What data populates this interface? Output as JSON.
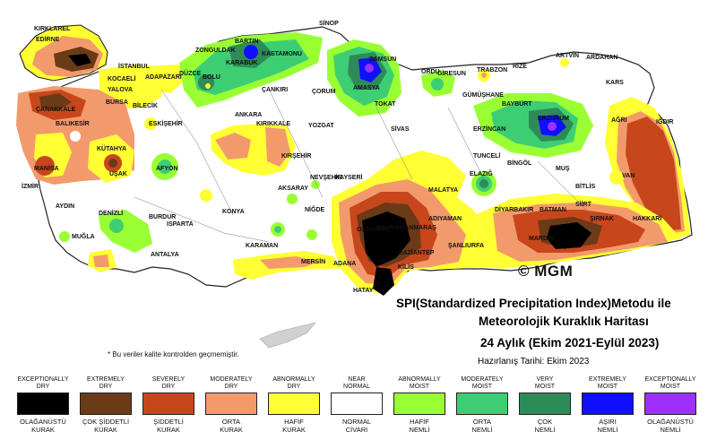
{
  "title": {
    "line1": "SPI(Standardized Precipitation Index)Metodu ile",
    "line2": "Meteorolojik Kuraklık Haritası",
    "line3": "24 Aylık (Ekim 2021-Eylül 2023)",
    "line4": "Hazırlanış Tarihi: Ekim 2023"
  },
  "brand": "© MGM",
  "note": "* Bu veriler kalite kontrolden geçmemiştir.",
  "colors": {
    "exceptionally_dry": "#000000",
    "extremely_dry": "#6b3a17",
    "severely_dry": "#c8461c",
    "moderately_dry": "#f39a6c",
    "abnormally_dry": "#ffff33",
    "near_normal": "#ffffff",
    "abnormally_moist": "#99ff33",
    "moderately_moist": "#3dce73",
    "very_moist": "#2e8b57",
    "extremely_moist": "#1010ff",
    "exceptionally_moist": "#9b30ff"
  },
  "legend": [
    {
      "en1": "EXCEPTIONALLY",
      "en2": "DRY",
      "tr1": "OLAĞANÜSTÜ",
      "tr2": "KURAK",
      "color": "#000000"
    },
    {
      "en1": "EXTREMELY",
      "en2": "DRY",
      "tr1": "ÇOK ŞİDDETLİ",
      "tr2": "KURAK",
      "color": "#6b3a17"
    },
    {
      "en1": "SEVERELY",
      "en2": "DRY",
      "tr1": "ŞİDDETLİ",
      "tr2": "KURAK",
      "color": "#c8461c"
    },
    {
      "en1": "MODERATELY",
      "en2": "DRY",
      "tr1": "ORTA",
      "tr2": "KURAK",
      "color": "#f39a6c"
    },
    {
      "en1": "ABNORMALLY",
      "en2": "DRY",
      "tr1": "HAFİF",
      "tr2": "KURAK",
      "color": "#ffff33"
    },
    {
      "en1": "NEAR",
      "en2": "NORMAL",
      "tr1": "NORMAL",
      "tr2": "CİVARI",
      "color": "#ffffff"
    },
    {
      "en1": "ABNORMALLY",
      "en2": "MOIST",
      "tr1": "HAFİF",
      "tr2": "NEMLİ",
      "color": "#99ff33"
    },
    {
      "en1": "MODERATELY",
      "en2": "MOIST",
      "tr1": "ORTA",
      "tr2": "NEMLİ",
      "color": "#3dce73"
    },
    {
      "en1": "VERY",
      "en2": "MOIST",
      "tr1": "ÇOK",
      "tr2": "NEMLİ",
      "color": "#2e8b57"
    },
    {
      "en1": "EXTREMELY",
      "en2": "MOIST",
      "tr1": "AŞIRI",
      "tr2": "NEMLİ",
      "color": "#1010ff"
    },
    {
      "en1": "EXCEPTIONALLY",
      "en2": "MOIST",
      "tr1": "OLAĞANÜSTÜ",
      "tr2": "NEMLİ",
      "color": "#9b30ff"
    }
  ],
  "cities": [
    "KIRKLAREL",
    "EDİRNE",
    "İSTANBUL",
    "SİNOP",
    "BARTIN",
    "ZONGULDAK",
    "DÜZCE",
    "BOLU",
    "KARABÜK",
    "KASTAMONU",
    "SAMSUN",
    "ORDU",
    "GİRESUN",
    "TRABZON",
    "RİZE",
    "ARTVİN",
    "ARDAHAN",
    "KARS",
    "ADAPAZARI",
    "KOCAELİ",
    "YALOVA",
    "BURSA",
    "BİLECİK",
    "ÇANAKKALE",
    "BALIKESİR",
    "ESKİŞEHİR",
    "ÇANKIRI",
    "ÇORUM",
    "AMASYA",
    "TOKAT",
    "GÜMÜŞHANE",
    "BAYBURT",
    "ERZURUM",
    "AĞRI",
    "IĞDIR",
    "ANKARA",
    "KIRIKKALE",
    "YOZGAT",
    "SİVAS",
    "ERZİNCAN",
    "KÜTAHYA",
    "MANİSA",
    "UŞAK",
    "İZMİR",
    "AFYON",
    "KIRŞEHİR",
    "NEVŞEHİR",
    "KAYSERİ",
    "TUNCELİ",
    "BİNGÖL",
    "MUŞ",
    "BİTLİS",
    "VAN",
    "AKSARAY",
    "ELAZIĞ",
    "MALATYA",
    "AYDIN",
    "DENİZLİ",
    "BURDUR",
    "ISPARTA",
    "KONYA",
    "NİĞDE",
    "ADIYAMAN",
    "DİYARBAKIR",
    "BATMAN",
    "SİİRT",
    "ŞIRNAK",
    "HAKKARİ",
    "MUĞLA",
    "ANTALYA",
    "KARAMAN",
    "MERSİN",
    "ADANA",
    "OSMANİYE",
    "KAHRAMANMARAŞ",
    "GAZİANTEP",
    "ŞANLIURFA",
    "MARDİN",
    "KİLİS",
    "HATAY"
  ]
}
